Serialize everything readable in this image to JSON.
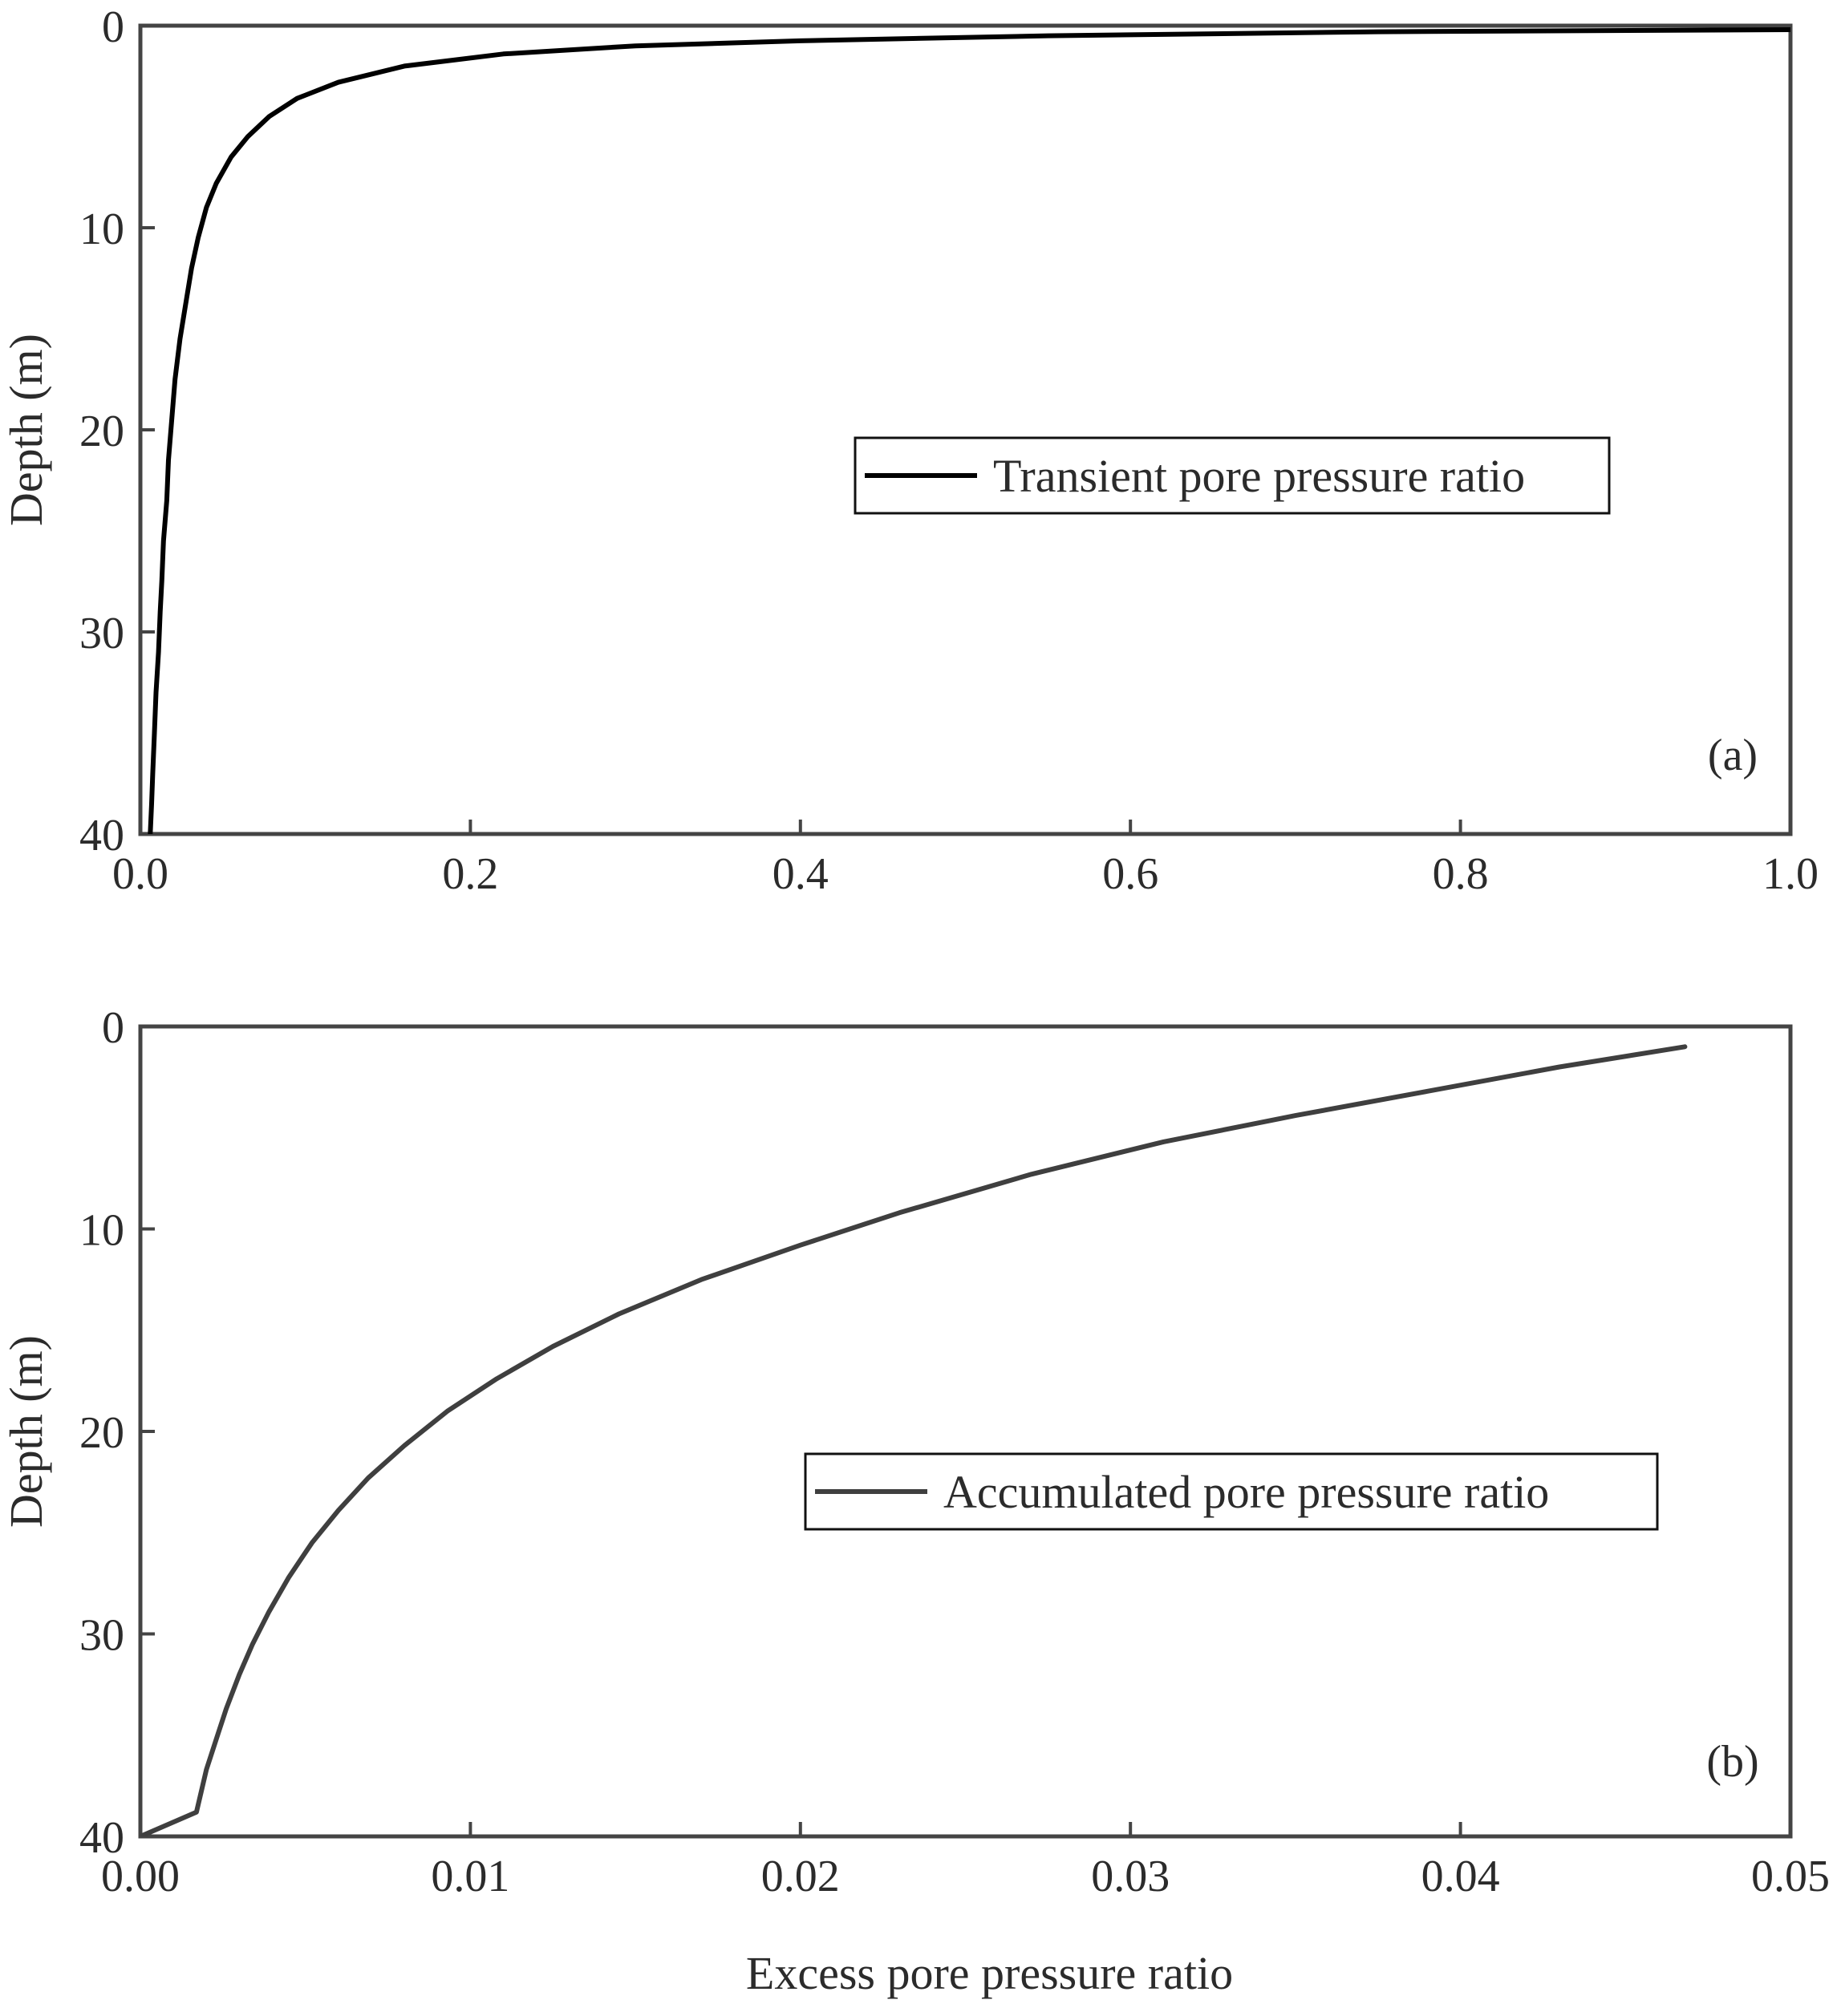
{
  "chart_data": [
    {
      "type": "line",
      "panel_label": "(a)",
      "xlabel": "",
      "ylabel": "Depth (m)",
      "xlim": [
        0.0,
        1.0
      ],
      "ylim": [
        0,
        40
      ],
      "y_inverted": true,
      "x_ticks": [
        "0.0",
        "0.2",
        "0.4",
        "0.6",
        "0.8",
        "1.0"
      ],
      "y_ticks": [
        "0",
        "10",
        "20",
        "30",
        "40"
      ],
      "legend_position": "center-right",
      "series": [
        {
          "name": "Transient pore pressure ratio",
          "color": "#000000",
          "x": [
            1.0,
            0.75,
            0.55,
            0.4,
            0.3,
            0.22,
            0.16,
            0.12,
            0.095,
            0.078,
            0.065,
            0.055,
            0.046,
            0.04,
            0.035,
            0.031,
            0.028,
            0.024,
            0.021,
            0.019,
            0.017,
            0.016,
            0.014,
            0.013,
            0.012,
            0.011,
            0.0095,
            0.0085,
            0.0075,
            0.0068,
            0.006
          ],
          "y": [
            0.2,
            0.3,
            0.5,
            0.75,
            1.0,
            1.4,
            2.0,
            2.8,
            3.6,
            4.5,
            5.5,
            6.5,
            7.8,
            9.0,
            10.5,
            12.0,
            13.5,
            15.5,
            17.5,
            19.5,
            21.5,
            23.5,
            25.5,
            27.5,
            29.0,
            31.0,
            33.0,
            35.0,
            37.0,
            38.5,
            40.0
          ]
        }
      ]
    },
    {
      "type": "line",
      "panel_label": "(b)",
      "xlabel": "Excess pore pressure ratio",
      "ylabel": "Depth (m)",
      "xlim": [
        0.0,
        0.05
      ],
      "ylim": [
        0,
        40
      ],
      "y_inverted": true,
      "x_ticks": [
        "0.00",
        "0.01",
        "0.02",
        "0.03",
        "0.04",
        "0.05"
      ],
      "y_ticks": [
        "0",
        "10",
        "20",
        "30",
        "40"
      ],
      "legend_position": "center-right",
      "series": [
        {
          "name": "Accumulated pore pressure ratio",
          "color": "#3f3f3f",
          "x": [
            0.0468,
            0.043,
            0.039,
            0.035,
            0.031,
            0.027,
            0.023,
            0.02,
            0.017,
            0.0145,
            0.0125,
            0.0108,
            0.0093,
            0.008,
            0.0069,
            0.006,
            0.0052,
            0.0045,
            0.0039,
            0.0034,
            0.003,
            0.0026,
            0.0023,
            0.002,
            0.0017,
            0.0
          ],
          "y": [
            1.0,
            2.0,
            3.2,
            4.4,
            5.7,
            7.3,
            9.2,
            10.8,
            12.5,
            14.2,
            15.8,
            17.4,
            19.0,
            20.7,
            22.3,
            23.9,
            25.5,
            27.2,
            28.9,
            30.5,
            32.0,
            33.7,
            35.2,
            36.7,
            38.8,
            40.0
          ]
        }
      ]
    }
  ]
}
